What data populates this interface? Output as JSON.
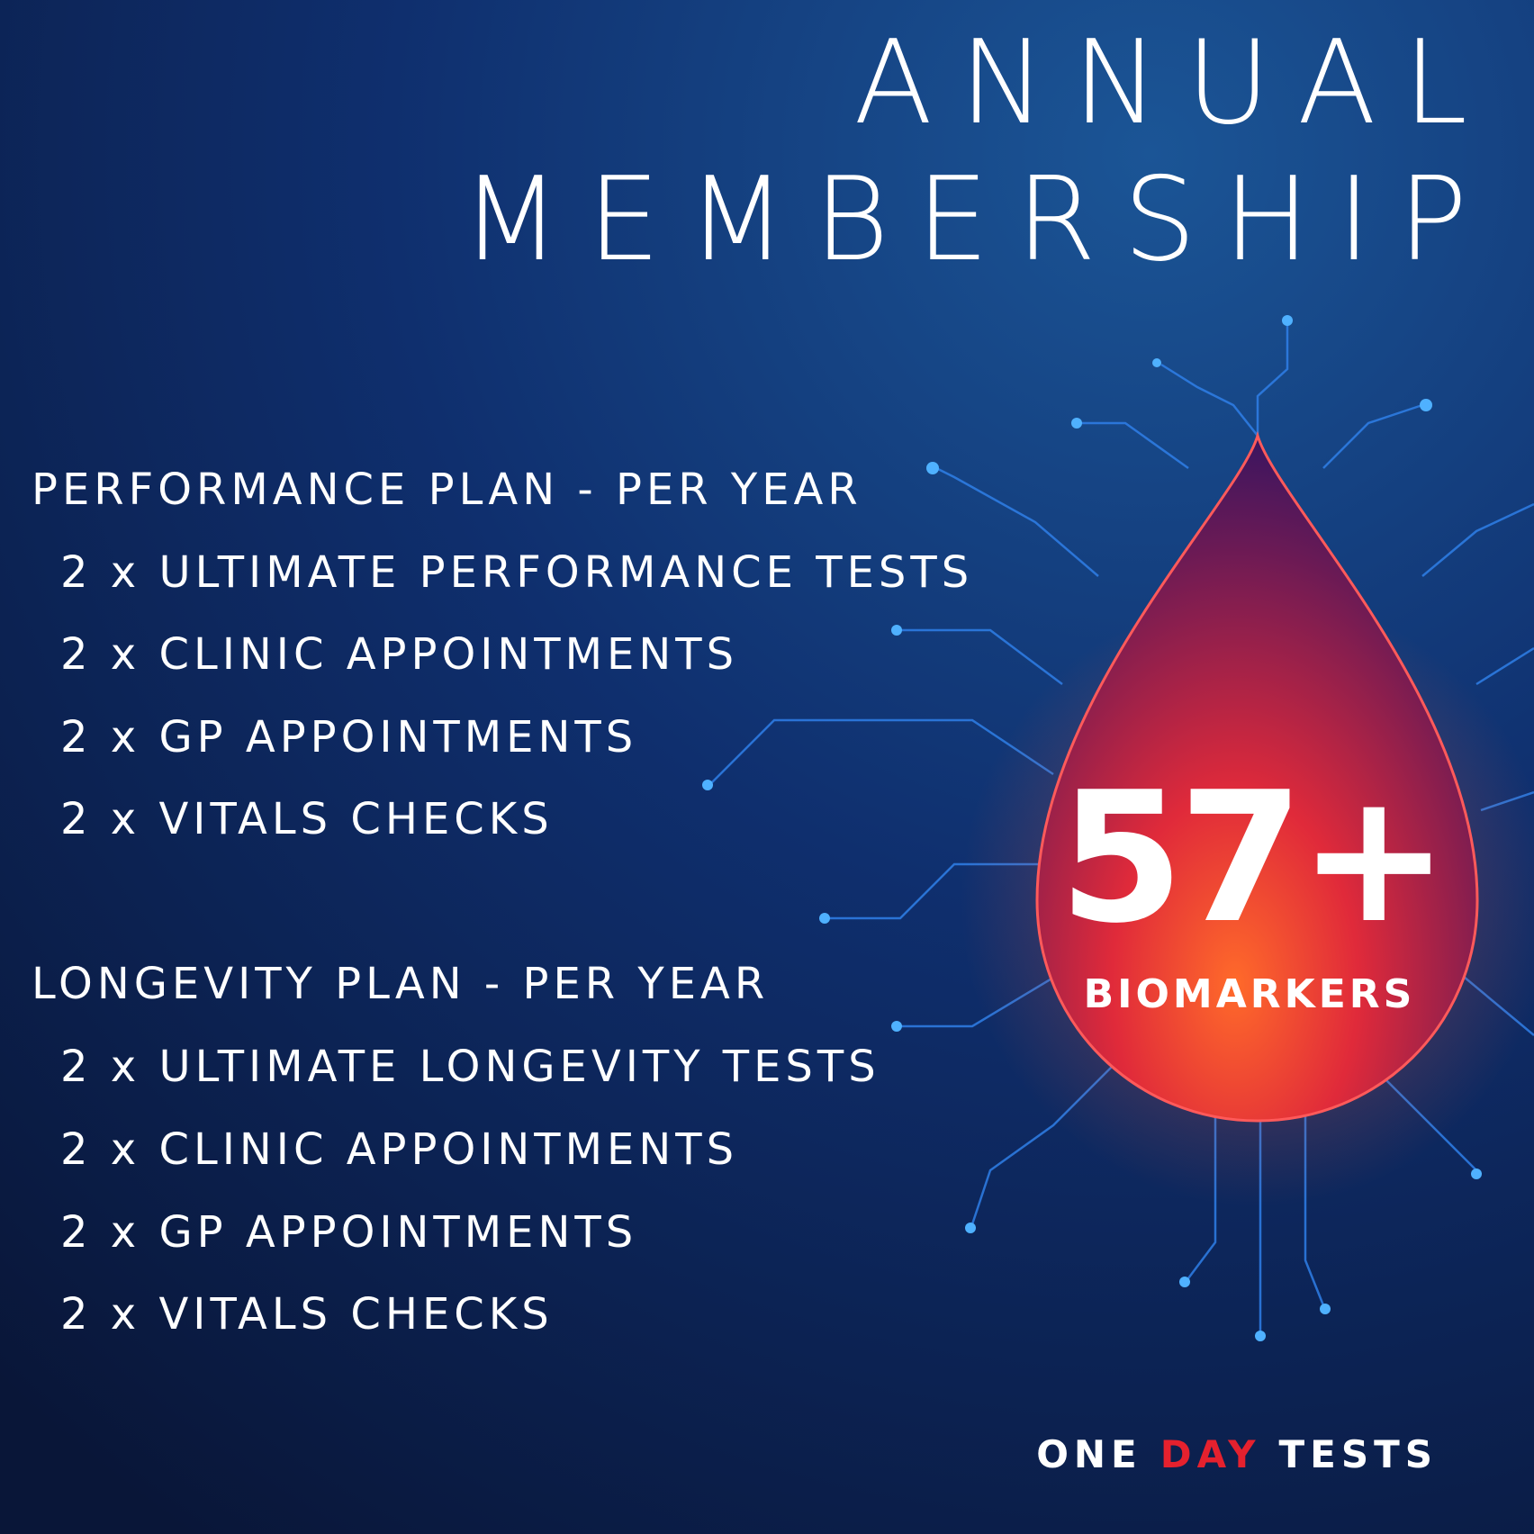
{
  "title": {
    "line1": "ANNUAL",
    "line2": "MEMBERSHIP"
  },
  "plans": [
    {
      "heading": "PERFORMANCE PLAN - PER YEAR",
      "items": [
        "2 x ULTIMATE PERFORMANCE TESTS",
        "2 x CLINIC APPOINTMENTS",
        "2 x GP APPOINTMENTS",
        "2 x VITALS CHECKS"
      ]
    },
    {
      "heading": "LONGEVITY PLAN - PER YEAR",
      "items": [
        "2 x ULTIMATE LONGEVITY TESTS",
        "2 x CLINIC APPOINTMENTS",
        "2 x GP APPOINTMENTS",
        "2 x VITALS CHECKS"
      ]
    }
  ],
  "badge": {
    "count": "57+",
    "label": "BIOMARKERS"
  },
  "logo": {
    "part1": "ONE",
    "part2": "DAY",
    "part3": "TESTS"
  }
}
